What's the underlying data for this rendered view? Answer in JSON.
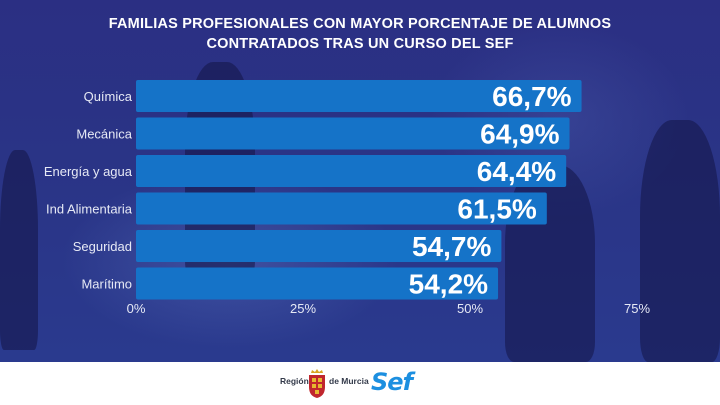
{
  "chart_data": {
    "type": "bar",
    "orientation": "horizontal",
    "title_lines": [
      "FAMILIAS PROFESIONALES CON MAYOR PORCENTAJE DE ALUMNOS",
      "CONTRATADOS TRAS UN CURSO DEL SEF"
    ],
    "categories": [
      "Química",
      "Mecánica",
      "Energía y agua",
      "Ind Alimentaria",
      "Seguridad",
      "Marítimo"
    ],
    "values": [
      66.7,
      64.9,
      64.4,
      61.5,
      54.7,
      54.2
    ],
    "value_labels": [
      "66,7%",
      "64,9%",
      "64,4%",
      "61,5%",
      "54,7%",
      "54,2%"
    ],
    "xticks": [
      0,
      25,
      50,
      75
    ],
    "xtick_labels": [
      "0%",
      "25%",
      "50%",
      "75%"
    ],
    "xlim": [
      0,
      75
    ],
    "bar_color": "#1573c8",
    "label_color": "#ffffff",
    "grid": false
  },
  "footer": {
    "region_left": "Región",
    "region_right": "de Murcia",
    "brand": "Sef",
    "brand_color": "#1c8fe0"
  }
}
